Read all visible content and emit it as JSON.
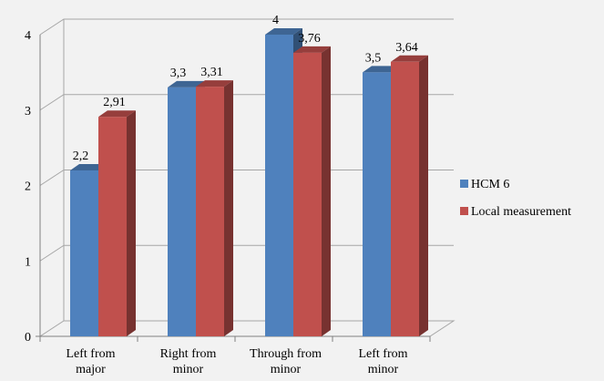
{
  "chart_data": {
    "type": "bar",
    "title": "",
    "xlabel": "",
    "ylabel": "",
    "categories": [
      "Left from major",
      "Right from minor",
      "Through from minor",
      "Left from minor"
    ],
    "series": [
      {
        "name": "HCM 6",
        "values": [
          2.2,
          3.3,
          4,
          3.5
        ],
        "labels": [
          "2,2",
          "3,3",
          "4",
          "3,5"
        ],
        "color": "#4f81bd"
      },
      {
        "name": "Local measurement",
        "values": [
          2.91,
          3.31,
          3.76,
          3.64
        ],
        "labels": [
          "2,91",
          "3,31",
          "3,76",
          "3,64"
        ],
        "color": "#c0504d"
      }
    ],
    "ylim": [
      0,
      4
    ],
    "yticks": [
      "0",
      "1",
      "2",
      "3",
      "4"
    ],
    "grid": true,
    "style": "3d-clustered-column",
    "legend_position": "right"
  },
  "colors": {
    "background": "#f2f2f2",
    "gridline": "#a6a6a6",
    "series1": "#4f81bd",
    "series2": "#c0504d"
  }
}
